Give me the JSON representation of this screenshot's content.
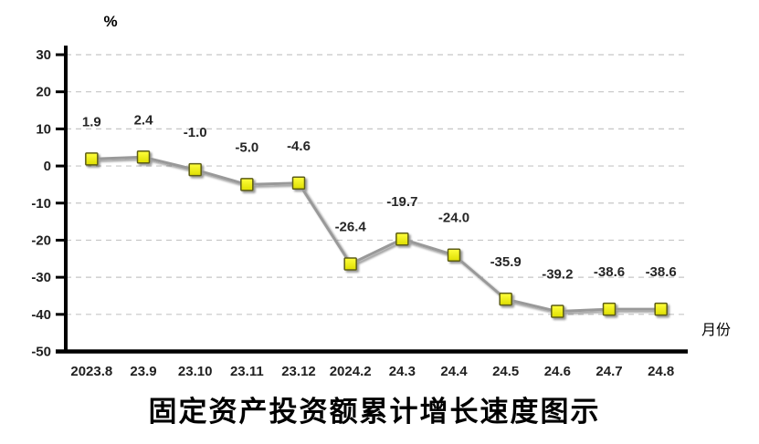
{
  "chart_data": {
    "type": "line",
    "title": "固定资产投资额累计增长速度图示",
    "ylabel": "%",
    "xlabel": "月份",
    "categories": [
      "2023.8",
      "23.9",
      "23.10",
      "23.11",
      "23.12",
      "2024.2",
      "24.3",
      "24.4",
      "24.5",
      "24.6",
      "24.7",
      "24.8"
    ],
    "values": [
      1.9,
      2.4,
      -1.0,
      -5.0,
      -4.6,
      -26.4,
      -19.7,
      -24.0,
      -35.9,
      -39.2,
      -38.6,
      -38.6
    ],
    "data_labels": [
      "1.9",
      "2.4",
      "-1.0",
      "-5.0",
      "-4.6",
      "-26.4",
      "-19.7",
      "-24.0",
      "-35.9",
      "-39.2",
      "-38.6",
      "-38.6"
    ],
    "ylim": [
      -50,
      30
    ],
    "yticks": [
      30,
      20,
      10,
      0,
      -10,
      -20,
      -30,
      -40,
      -50
    ],
    "ytick_labels": [
      "30",
      "20",
      "10",
      "0",
      "-10",
      "-20",
      "-30",
      "-40",
      "-50"
    ],
    "grid": "dashed-horizontal",
    "legend": "none",
    "colors": {
      "line": "#999999",
      "marker_fill_top": "#ffff3d",
      "marker_fill_bottom": "#dede00",
      "marker_stroke": "#5c5c14",
      "grid": "#c6c6c6",
      "axis": "#000000",
      "text": "#1f1f1f"
    }
  }
}
